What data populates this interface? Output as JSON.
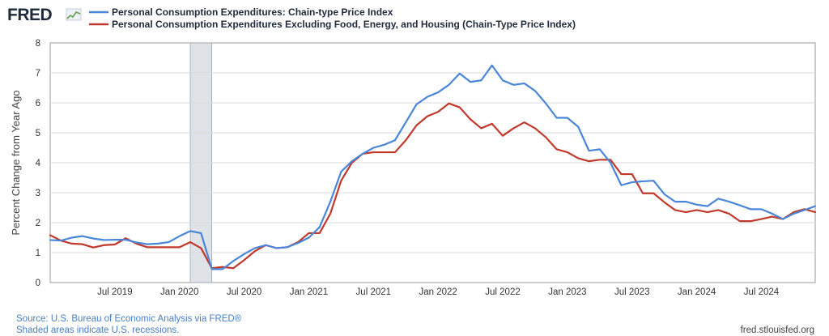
{
  "logo": {
    "text": "FRED"
  },
  "colors": {
    "series_1": "#4a86d8",
    "series_2": "#c0392b",
    "recession": "#dfe2e6",
    "grid": "#d9d9d9",
    "plot_border": "#888888"
  },
  "footer": {
    "source": "Source: U.S. Bureau of Economic Analysis via FRED®",
    "recession_note": "Shaded areas indicate U.S. recessions.",
    "site": "fred.stlouisfed.org"
  },
  "chart_data": {
    "type": "line",
    "title": "",
    "xlabel": "",
    "ylabel": "Percent Change from Year Ago",
    "ylim": [
      0,
      8
    ],
    "yticks": [
      0,
      1,
      2,
      3,
      4,
      5,
      6,
      7,
      8
    ],
    "xlim": [
      "2019-01",
      "2024-12"
    ],
    "xticks": [
      {
        "label": "Jul 2019",
        "date": "2019-07"
      },
      {
        "label": "Jan 2020",
        "date": "2020-01"
      },
      {
        "label": "Jul 2020",
        "date": "2020-07"
      },
      {
        "label": "Jan 2021",
        "date": "2021-01"
      },
      {
        "label": "Jul 2021",
        "date": "2021-07"
      },
      {
        "label": "Jan 2022",
        "date": "2022-01"
      },
      {
        "label": "Jul 2022",
        "date": "2022-07"
      },
      {
        "label": "Jan 2023",
        "date": "2023-01"
      },
      {
        "label": "Jul 2023",
        "date": "2023-07"
      },
      {
        "label": "Jan 2024",
        "date": "2024-01"
      },
      {
        "label": "Jul 2024",
        "date": "2024-07"
      }
    ],
    "grid": true,
    "legend_position": "top-left",
    "recessions": [
      {
        "start": "2020-02",
        "end": "2020-04"
      }
    ],
    "x": [
      "2019-01",
      "2019-02",
      "2019-03",
      "2019-04",
      "2019-05",
      "2019-06",
      "2019-07",
      "2019-08",
      "2019-09",
      "2019-10",
      "2019-11",
      "2019-12",
      "2020-01",
      "2020-02",
      "2020-03",
      "2020-04",
      "2020-05",
      "2020-06",
      "2020-07",
      "2020-08",
      "2020-09",
      "2020-10",
      "2020-11",
      "2020-12",
      "2021-01",
      "2021-02",
      "2021-03",
      "2021-04",
      "2021-05",
      "2021-06",
      "2021-07",
      "2021-08",
      "2021-09",
      "2021-10",
      "2021-11",
      "2021-12",
      "2022-01",
      "2022-02",
      "2022-03",
      "2022-04",
      "2022-05",
      "2022-06",
      "2022-07",
      "2022-08",
      "2022-09",
      "2022-10",
      "2022-11",
      "2022-12",
      "2023-01",
      "2023-02",
      "2023-03",
      "2023-04",
      "2023-05",
      "2023-06",
      "2023-07",
      "2023-08",
      "2023-09",
      "2023-10",
      "2023-11",
      "2023-12",
      "2024-01",
      "2024-02",
      "2024-03",
      "2024-04",
      "2024-05",
      "2024-06",
      "2024-07",
      "2024-08",
      "2024-09",
      "2024-10",
      "2024-11",
      "2024-12"
    ],
    "series": [
      {
        "name": "Personal Consumption Expenditures: Chain-type Price Index",
        "color": "#4a86d8",
        "values": [
          1.42,
          1.4,
          1.5,
          1.55,
          1.47,
          1.42,
          1.43,
          1.43,
          1.34,
          1.28,
          1.3,
          1.35,
          1.55,
          1.72,
          1.65,
          0.45,
          0.45,
          0.72,
          0.95,
          1.15,
          1.25,
          1.15,
          1.18,
          1.32,
          1.5,
          1.85,
          2.7,
          3.7,
          4.05,
          4.3,
          4.5,
          4.6,
          4.75,
          5.35,
          5.95,
          6.2,
          6.35,
          6.6,
          6.98,
          6.7,
          6.75,
          7.25,
          6.75,
          6.6,
          6.65,
          6.4,
          5.98,
          5.5,
          5.5,
          5.2,
          4.4,
          4.45,
          4.0,
          3.25,
          3.35,
          3.38,
          3.4,
          2.95,
          2.7,
          2.7,
          2.6,
          2.55,
          2.8,
          2.7,
          2.58,
          2.45,
          2.45,
          2.3,
          2.12,
          2.3,
          2.42,
          2.55
        ]
      },
      {
        "name": "Personal Consumption Expenditures Excluding Food, Energy, and Housing (Chain-Type Price Index)",
        "color": "#c0392b",
        "values": [
          1.58,
          1.4,
          1.3,
          1.28,
          1.17,
          1.25,
          1.27,
          1.48,
          1.3,
          1.18,
          1.18,
          1.18,
          1.18,
          1.35,
          1.15,
          0.48,
          0.52,
          0.48,
          0.75,
          1.05,
          1.25,
          1.15,
          1.18,
          1.35,
          1.65,
          1.65,
          2.3,
          3.4,
          4.0,
          4.3,
          4.35,
          4.35,
          4.35,
          4.75,
          5.25,
          5.55,
          5.7,
          5.98,
          5.85,
          5.45,
          5.15,
          5.3,
          4.9,
          5.15,
          5.35,
          5.15,
          4.85,
          4.45,
          4.35,
          4.15,
          4.05,
          4.1,
          4.1,
          3.62,
          3.62,
          2.98,
          2.98,
          2.68,
          2.42,
          2.35,
          2.42,
          2.35,
          2.42,
          2.3,
          2.05,
          2.05,
          2.12,
          2.2,
          2.12,
          2.35,
          2.45,
          2.35
        ]
      }
    ]
  }
}
